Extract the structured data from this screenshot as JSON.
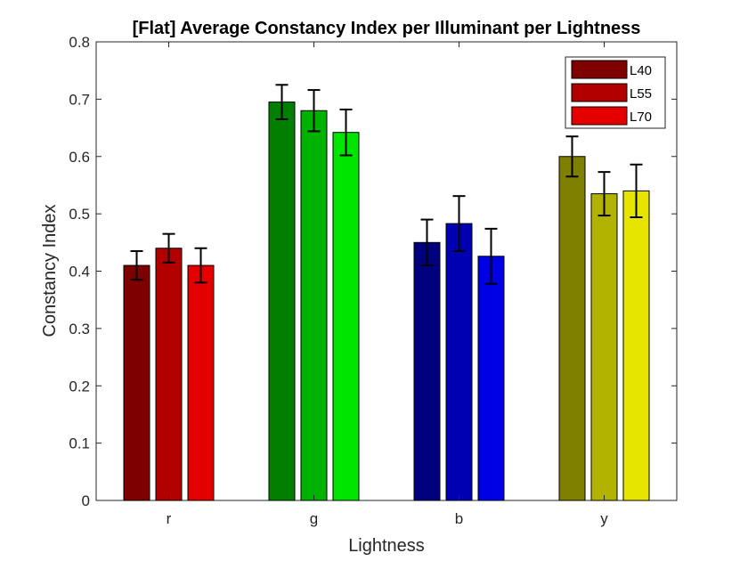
{
  "chart_data": {
    "type": "bar",
    "title": "[Flat] Average Constancy Index per Illuminant per Lightness",
    "xlabel": "Lightness",
    "ylabel": "Constancy Index",
    "categories": [
      "r",
      "g",
      "b",
      "y"
    ],
    "series": [
      {
        "name": "L40",
        "values": [
          0.41,
          0.695,
          0.45,
          0.6
        ],
        "errors": [
          0.025,
          0.03,
          0.04,
          0.035
        ]
      },
      {
        "name": "L55",
        "values": [
          0.44,
          0.68,
          0.483,
          0.535
        ],
        "errors": [
          0.025,
          0.036,
          0.048,
          0.038
        ]
      },
      {
        "name": "L70",
        "values": [
          0.41,
          0.642,
          0.426,
          0.54
        ],
        "errors": [
          0.03,
          0.04,
          0.048,
          0.046
        ]
      }
    ],
    "bar_colors": [
      [
        "#7f0000",
        "#007f00",
        "#00007f",
        "#7f7f00"
      ],
      [
        "#b20000",
        "#00b200",
        "#0000b2",
        "#b2b200"
      ],
      [
        "#e50000",
        "#00e500",
        "#0000e5",
        "#e5e500"
      ]
    ],
    "legend_colors": [
      "#7f0000",
      "#b20000",
      "#e50000"
    ],
    "ylim": [
      0,
      0.8
    ],
    "yticks": [
      "0",
      "0.1",
      "0.2",
      "0.3",
      "0.4",
      "0.5",
      "0.6",
      "0.7",
      "0.8"
    ],
    "grid": false,
    "legend_position": "top-right"
  }
}
